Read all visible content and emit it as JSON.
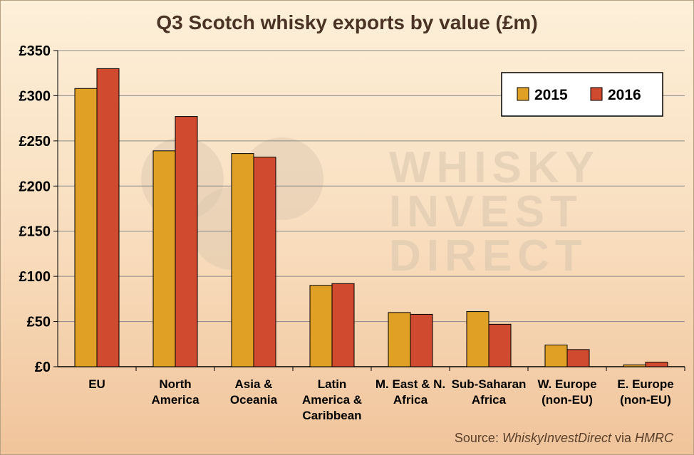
{
  "chart_data": {
    "type": "bar",
    "title": "Q3 Scotch whisky exports by value (£m)",
    "categories": [
      "EU",
      "North America",
      "Asia & Oceania",
      "Latin America & Caribbean",
      "M. East & N. Africa",
      "Sub-Saharan Africa",
      "W. Europe (non-EU)",
      "E. Europe (non-EU)"
    ],
    "category_lines": [
      [
        "EU"
      ],
      [
        "North",
        "America"
      ],
      [
        "Asia &",
        "Oceania"
      ],
      [
        "Latin",
        "America &",
        "Caribbean"
      ],
      [
        "M. East & N.",
        "Africa"
      ],
      [
        "Sub-Saharan",
        "Africa"
      ],
      [
        "W. Europe",
        "(non-EU)"
      ],
      [
        "E. Europe",
        "(non-EU)"
      ]
    ],
    "series": [
      {
        "name": "2015",
        "color": "#e0a025",
        "values": [
          308,
          239,
          236,
          90,
          60,
          61,
          24,
          2
        ]
      },
      {
        "name": "2016",
        "color": "#cf4a2e",
        "values": [
          330,
          277,
          232,
          92,
          58,
          47,
          19,
          5
        ]
      }
    ],
    "ylim": [
      0,
      350
    ],
    "yticks": [
      0,
      50,
      100,
      150,
      200,
      250,
      300,
      350
    ],
    "ytick_labels": [
      "£0",
      "£50",
      "£100",
      "£150",
      "£200",
      "£250",
      "£300",
      "£350"
    ],
    "xlabel": "",
    "ylabel": "",
    "legend_position": "top-right",
    "grid": true
  },
  "watermark": {
    "lines": [
      "WHISKY",
      "INVEST",
      "DIRECT"
    ]
  },
  "source": {
    "prefix": "Source: ",
    "name": "WhiskyInvestDirect",
    "middle": " via ",
    "org": "HMRC"
  }
}
